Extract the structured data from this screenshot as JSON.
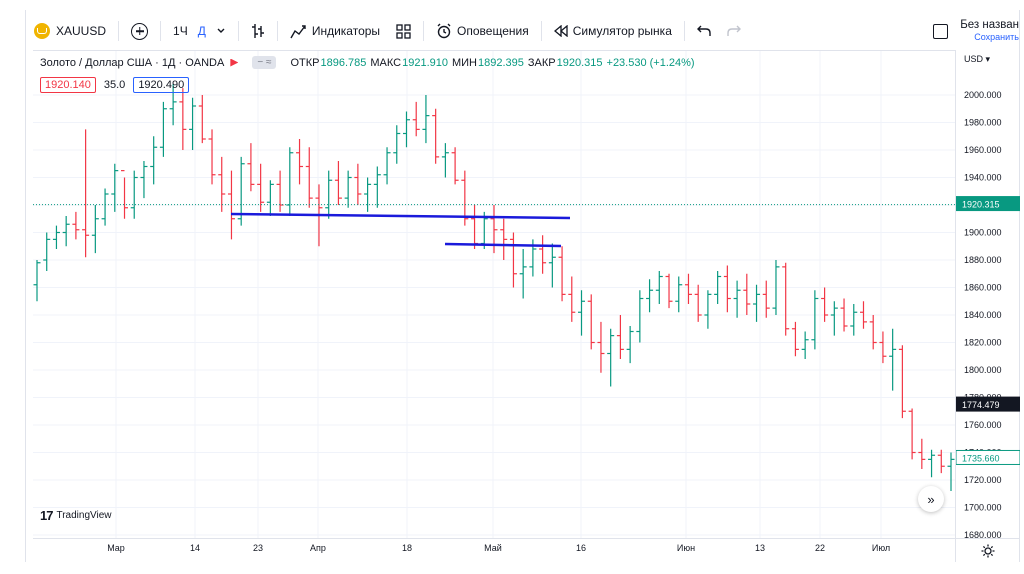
{
  "toolbar": {
    "symbol": "XAUUSD",
    "interval_1": "1Ч",
    "interval_2": "Д",
    "indicators_label": "Индикаторы",
    "alerts_label": "Оповещения",
    "replay_label": "Симулятор рынка",
    "layout_title": "Без назван",
    "save_label": "Сохранить"
  },
  "legend": {
    "title": "Золото / Доллар США · 1Д · OANDA",
    "pill": "− ≈",
    "open_label": "ОТКР",
    "open": "1896.785",
    "high_label": "МАКС",
    "high": "1921.910",
    "low_label": "МИН",
    "low": "1892.395",
    "close_label": "ЗАКР",
    "close": "1920.315",
    "change": "+23.530 (+1.24%)"
  },
  "indicator_row": {
    "bid": "1920.140",
    "spread": "35.0",
    "ask": "1920.490"
  },
  "price_axis": {
    "currency": "USD",
    "labels": [
      "2000.000",
      "1980.000",
      "1960.000",
      "1940.000",
      "1920.000",
      "1900.000",
      "1880.000",
      "1860.000",
      "1840.000",
      "1820.000",
      "1800.000",
      "1780.000",
      "1760.000",
      "1740.000",
      "1720.000",
      "1700.000",
      "1680.000"
    ],
    "last_price": "1920.315",
    "crosshair_price": "1774.479",
    "bottom_price": "1735.660"
  },
  "time_axis": {
    "labels": [
      "Мар",
      "14",
      "23",
      "Апр",
      "18",
      "Май",
      "16",
      "Июн",
      "13",
      "22",
      "Июл"
    ]
  },
  "branding": {
    "logo_text": "TradingView"
  },
  "colors": {
    "up": "#089981",
    "down": "#f23645",
    "drawn_line": "#1a1adb",
    "accent": "#2962ff"
  },
  "chart_data": {
    "type": "ohlc",
    "symbol": "XAUUSD",
    "interval": "1Д",
    "ylim": [
      1680,
      2010
    ],
    "yticks": [
      2000,
      1980,
      1960,
      1940,
      1920,
      1900,
      1880,
      1860,
      1840,
      1820,
      1800,
      1780,
      1760,
      1740,
      1720,
      1700,
      1680
    ],
    "xticks": [
      "Мар",
      "14",
      "23",
      "Апр",
      "18",
      "Май",
      "16",
      "Июн",
      "13",
      "22",
      "Июл"
    ],
    "last_price": 1920.315,
    "bars": [
      [
        1862,
        1880,
        1850,
        1878
      ],
      [
        1880,
        1900,
        1872,
        1895
      ],
      [
        1895,
        1905,
        1888,
        1900
      ],
      [
        1900,
        1912,
        1890,
        1906
      ],
      [
        1906,
        1915,
        1895,
        1902
      ],
      [
        1902,
        1975,
        1882,
        1898
      ],
      [
        1898,
        1920,
        1885,
        1910
      ],
      [
        1910,
        1932,
        1905,
        1928
      ],
      [
        1928,
        1950,
        1915,
        1945
      ],
      [
        1945,
        1940,
        1910,
        1918
      ],
      [
        1918,
        1945,
        1910,
        1940
      ],
      [
        1940,
        1952,
        1925,
        1948
      ],
      [
        1948,
        1970,
        1935,
        1962
      ],
      [
        1962,
        1995,
        1955,
        1990
      ],
      [
        1990,
        2008,
        1978,
        1995
      ],
      [
        1995,
        2005,
        1960,
        1975
      ],
      [
        1975,
        1998,
        1960,
        1992
      ],
      [
        1992,
        2000,
        1965,
        1968
      ],
      [
        1968,
        1975,
        1935,
        1942
      ],
      [
        1942,
        1955,
        1915,
        1928
      ],
      [
        1928,
        1945,
        1895,
        1910
      ],
      [
        1910,
        1955,
        1905,
        1950
      ],
      [
        1950,
        1965,
        1930,
        1935
      ],
      [
        1935,
        1950,
        1915,
        1922
      ],
      [
        1922,
        1938,
        1912,
        1935
      ],
      [
        1935,
        1945,
        1915,
        1920
      ],
      [
        1920,
        1962,
        1912,
        1958
      ],
      [
        1958,
        1968,
        1935,
        1948
      ],
      [
        1948,
        1962,
        1918,
        1925
      ],
      [
        1925,
        1935,
        1890,
        1918
      ],
      [
        1918,
        1945,
        1910,
        1938
      ],
      [
        1938,
        1952,
        1920,
        1925
      ],
      [
        1925,
        1945,
        1918,
        1940
      ],
      [
        1940,
        1950,
        1920,
        1928
      ],
      [
        1928,
        1940,
        1915,
        1935
      ],
      [
        1935,
        1948,
        1918,
        1942
      ],
      [
        1942,
        1962,
        1935,
        1958
      ],
      [
        1958,
        1978,
        1950,
        1972
      ],
      [
        1972,
        1988,
        1962,
        1982
      ],
      [
        1982,
        1995,
        1970,
        1975
      ],
      [
        1975,
        2000,
        1965,
        1985
      ],
      [
        1985,
        1990,
        1950,
        1955
      ],
      [
        1955,
        1965,
        1940,
        1958
      ],
      [
        1958,
        1962,
        1935,
        1938
      ],
      [
        1938,
        1945,
        1905,
        1910
      ],
      [
        1910,
        1920,
        1888,
        1892
      ],
      [
        1892,
        1915,
        1888,
        1910
      ],
      [
        1910,
        1920,
        1885,
        1902
      ],
      [
        1902,
        1910,
        1880,
        1895
      ],
      [
        1895,
        1900,
        1860,
        1870
      ],
      [
        1870,
        1888,
        1852,
        1875
      ],
      [
        1875,
        1895,
        1868,
        1888
      ],
      [
        1888,
        1898,
        1870,
        1878
      ],
      [
        1878,
        1892,
        1860,
        1882
      ],
      [
        1882,
        1890,
        1850,
        1855
      ],
      [
        1855,
        1868,
        1835,
        1842
      ],
      [
        1842,
        1858,
        1825,
        1850
      ],
      [
        1850,
        1855,
        1815,
        1820
      ],
      [
        1820,
        1835,
        1798,
        1812
      ],
      [
        1812,
        1830,
        1788,
        1825
      ],
      [
        1825,
        1840,
        1808,
        1815
      ],
      [
        1815,
        1832,
        1805,
        1828
      ],
      [
        1828,
        1858,
        1820,
        1852
      ],
      [
        1852,
        1866,
        1842,
        1858
      ],
      [
        1858,
        1872,
        1848,
        1868
      ],
      [
        1868,
        1870,
        1845,
        1850
      ],
      [
        1850,
        1868,
        1842,
        1862
      ],
      [
        1862,
        1870,
        1848,
        1855
      ],
      [
        1855,
        1862,
        1835,
        1840
      ],
      [
        1840,
        1858,
        1830,
        1855
      ],
      [
        1855,
        1872,
        1848,
        1868
      ],
      [
        1868,
        1876,
        1842,
        1852
      ],
      [
        1852,
        1865,
        1838,
        1858
      ],
      [
        1858,
        1870,
        1840,
        1848
      ],
      [
        1848,
        1862,
        1835,
        1855
      ],
      [
        1855,
        1865,
        1838,
        1845
      ],
      [
        1845,
        1880,
        1840,
        1875
      ],
      [
        1875,
        1878,
        1825,
        1830
      ],
      [
        1830,
        1835,
        1810,
        1815
      ],
      [
        1815,
        1828,
        1808,
        1822
      ],
      [
        1822,
        1858,
        1815,
        1852
      ],
      [
        1852,
        1860,
        1835,
        1840
      ],
      [
        1840,
        1850,
        1825,
        1845
      ],
      [
        1845,
        1852,
        1828,
        1832
      ],
      [
        1832,
        1848,
        1825,
        1842
      ],
      [
        1842,
        1850,
        1830,
        1835
      ],
      [
        1835,
        1840,
        1815,
        1820
      ],
      [
        1820,
        1828,
        1805,
        1810
      ],
      [
        1810,
        1830,
        1785,
        1815
      ],
      [
        1815,
        1818,
        1765,
        1770
      ],
      [
        1770,
        1772,
        1735,
        1740
      ],
      [
        1740,
        1750,
        1728,
        1735
      ],
      [
        1735,
        1742,
        1722,
        1738
      ],
      [
        1738,
        1742,
        1725,
        1730
      ],
      [
        1730,
        1740,
        1712,
        1735
      ]
    ],
    "drawn_lines": [
      {
        "from": [
          "23",
          1914
        ],
        "to": [
          "Май",
          1911
        ]
      },
      {
        "from": [
          "18",
          1891
        ],
        "to": [
          "Май",
          1889
        ]
      }
    ]
  }
}
